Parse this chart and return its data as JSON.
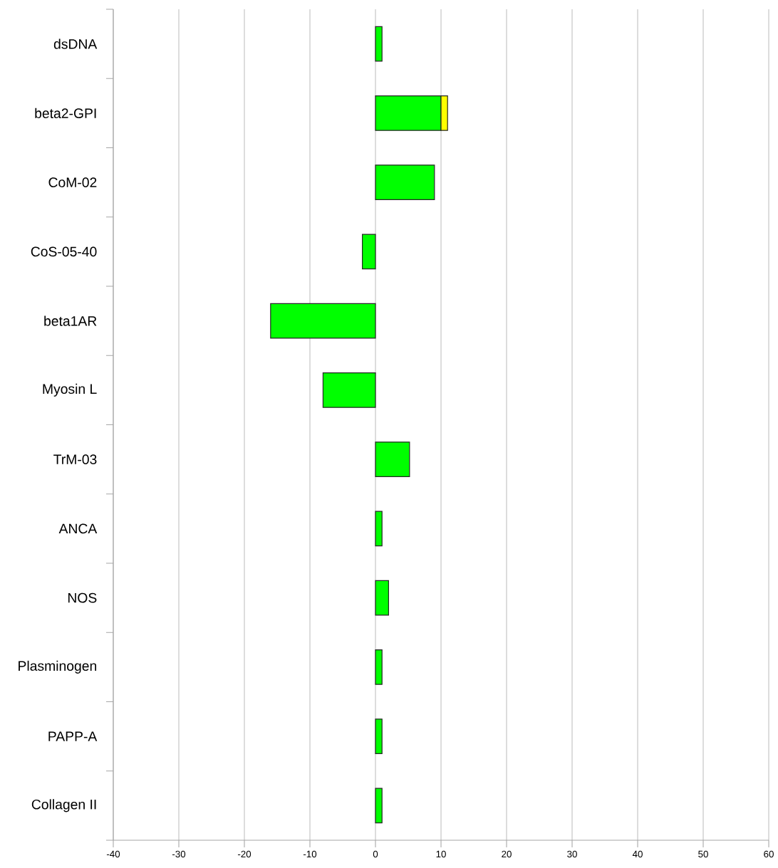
{
  "chart_data": {
    "type": "bar",
    "orientation": "horizontal",
    "stacked": true,
    "categories": [
      "dsDNA",
      "beta2-GPI",
      "CoM-02",
      "CoS-05-40",
      "beta1AR",
      "Myosin L",
      "TrM-03",
      "ANCA",
      "NOS",
      "Plasminogen",
      "PAPP-A",
      "Collagen II"
    ],
    "series": [
      {
        "color": "#00ff00",
        "values": [
          1,
          10,
          9,
          -2,
          -16,
          -8,
          5.2,
          1,
          2,
          1,
          1,
          1
        ]
      },
      {
        "color": "#ffff00",
        "values": [
          null,
          1,
          null,
          null,
          null,
          null,
          null,
          null,
          null,
          null,
          null,
          null
        ]
      }
    ],
    "xlim": [
      -40,
      60
    ],
    "xticks": [
      -40,
      -30,
      -20,
      -10,
      0,
      10,
      20,
      30,
      40,
      50,
      60
    ],
    "grid": "x"
  }
}
